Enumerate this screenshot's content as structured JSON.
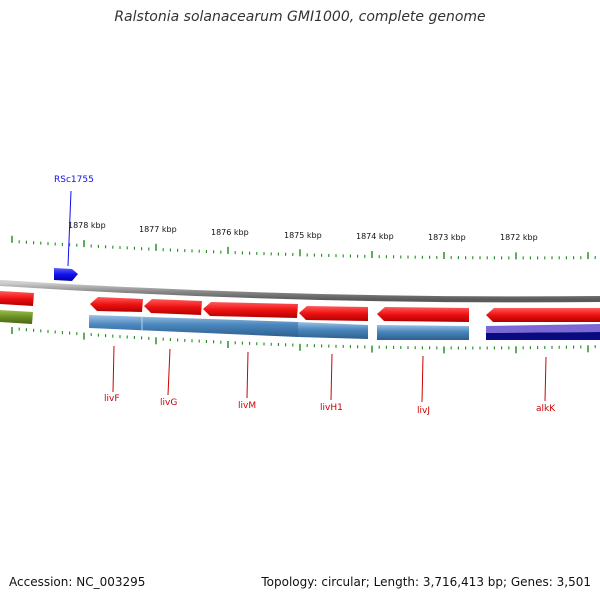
{
  "title": "Ralstonia solanacearum GMI1000, complete genome",
  "footer": {
    "accession": "Accession: NC_003295",
    "summary": "Topology: circular; Length: 3,716,413 bp; Genes: 3,501"
  },
  "ruler": {
    "labels": [
      "1878 kbp",
      "1877 kbp",
      "1876 kbp",
      "1875 kbp",
      "1874 kbp",
      "1873 kbp",
      "1872 kbp"
    ]
  },
  "genes": [
    {
      "name": "RSc1755",
      "strand": "forward",
      "color": "#1010ee"
    },
    {
      "name": "livF",
      "strand": "reverse",
      "color": "#cc0000"
    },
    {
      "name": "livG",
      "strand": "reverse",
      "color": "#cc0000"
    },
    {
      "name": "livM",
      "strand": "reverse",
      "color": "#cc0000"
    },
    {
      "name": "livH1",
      "strand": "reverse",
      "color": "#cc0000"
    },
    {
      "name": "livJ",
      "strand": "reverse",
      "color": "#cc0000"
    },
    {
      "name": "alkK",
      "strand": "reverse",
      "color": "#cc0000"
    }
  ],
  "colors": {
    "backbone": "#8c8c8c",
    "cds_reverse": "#ee1111",
    "feature_blue": "#4a86bd",
    "feature_green": "#6b8e23",
    "feature_navy": "#0a0a80",
    "feature_purple": "#7b68d6",
    "tick": "#1a8c1a"
  }
}
